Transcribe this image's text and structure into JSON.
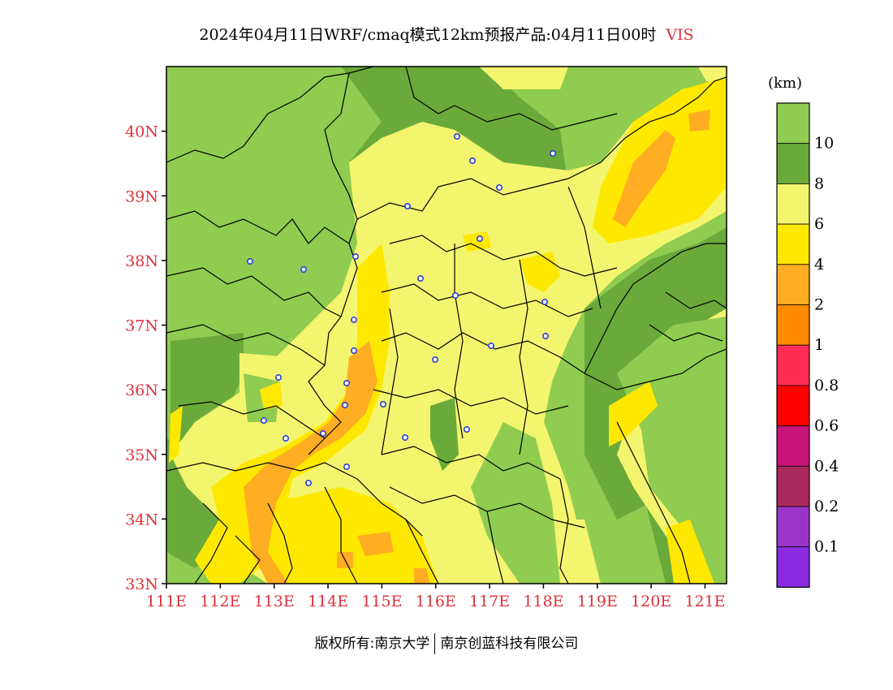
{
  "title": {
    "main": "2024年04月11日WRF/cmaq模式12km预报产品:04月11日00时",
    "variable": "VIS"
  },
  "colors": {
    "axis_label": "#e0303a",
    "boundary": "#000000",
    "station": "#2a3fd8"
  },
  "map": {
    "lat_ticks": [
      "33N",
      "34N",
      "35N",
      "36N",
      "37N",
      "38N",
      "39N",
      "40N"
    ],
    "lon_ticks": [
      "111E",
      "112E",
      "113E",
      "114E",
      "115E",
      "116E",
      "117E",
      "118E",
      "119E",
      "120E",
      "121E"
    ],
    "lat_range": [
      33,
      41
    ],
    "lon_range": [
      111,
      121.4
    ]
  },
  "legend": {
    "unit": "(km)",
    "bins": [
      {
        "label": "10",
        "color": "#8fcc50"
      },
      {
        "label": "8",
        "color": "#6aaa3a"
      },
      {
        "label": "6",
        "color": "#f4f56e"
      },
      {
        "label": "4",
        "color": "#ffe800"
      },
      {
        "label": "2",
        "color": "#ffad22"
      },
      {
        "label": "1",
        "color": "#ff8a00"
      },
      {
        "label": "0.8",
        "color": "#ff2d55"
      },
      {
        "label": "0.6",
        "color": "#ff0000"
      },
      {
        "label": "0.4",
        "color": "#c8137a"
      },
      {
        "label": "0.2",
        "color": "#a8285c"
      },
      {
        "label": "0.1",
        "color": "#9b35c8"
      },
      {
        "label": "",
        "color": "#8a2be2"
      }
    ]
  },
  "footer": {
    "left": "版权所有:南京大学",
    "right": "南京创蓝科技有限公司"
  }
}
